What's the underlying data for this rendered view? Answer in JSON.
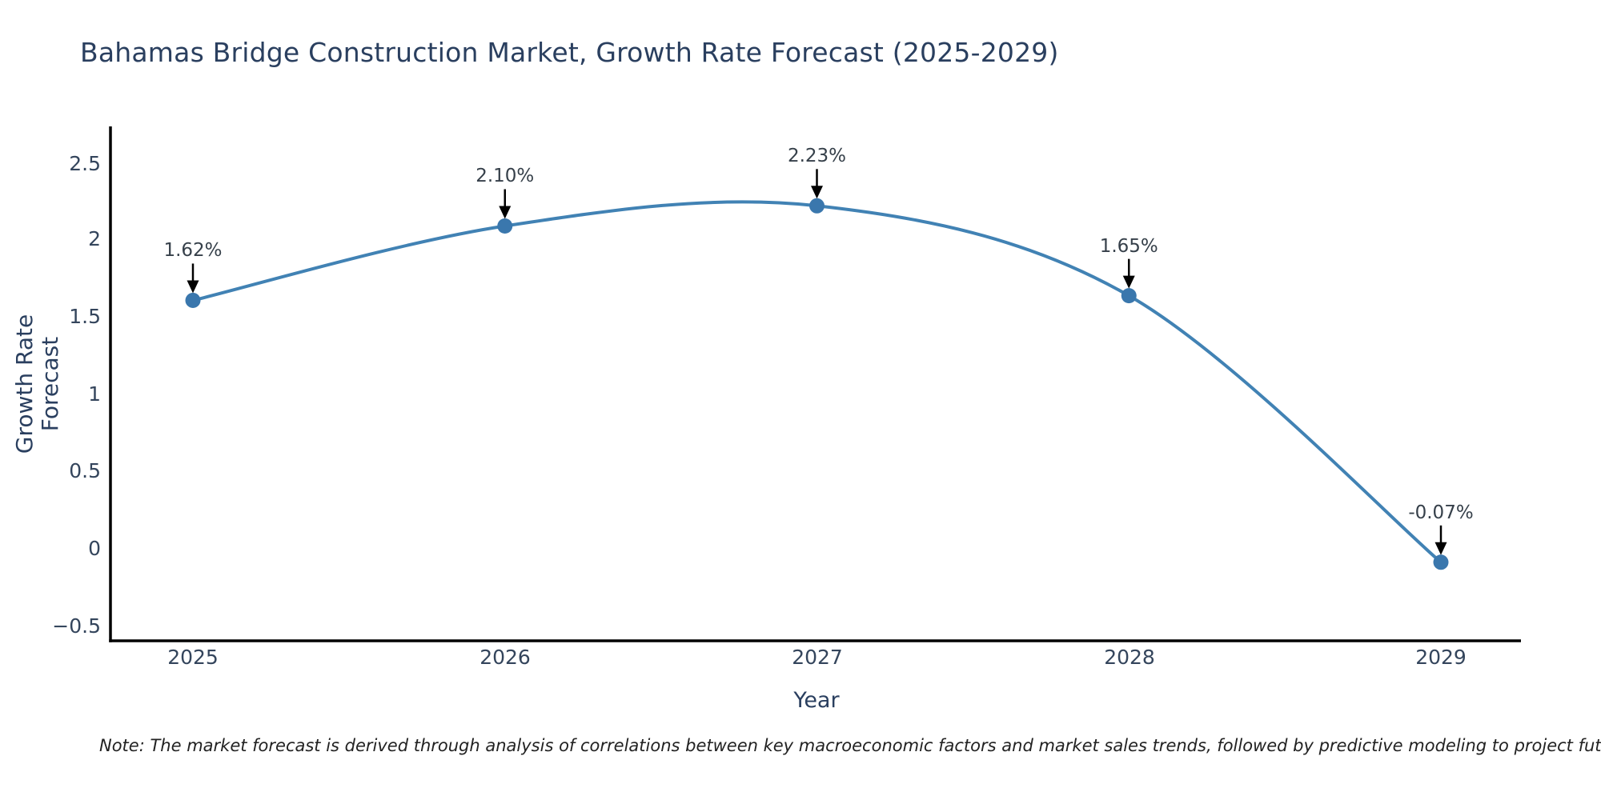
{
  "title": "Bahamas Bridge Construction Market, Growth Rate Forecast (2025-2029)",
  "note": "Note: The market forecast is derived through analysis of correlations between key macroeconomic factors and market sales trends, followed by predictive modeling to project future sa",
  "chart_data": {
    "type": "line",
    "title": "Bahamas Bridge Construction Market, Growth Rate Forecast (2025-2029)",
    "xlabel": "Year",
    "ylabel": "Growth Rate Forecast",
    "x": [
      2025,
      2026,
      2027,
      2028,
      2029
    ],
    "series": [
      {
        "name": "Growth Rate Forecast",
        "values": [
          1.62,
          2.1,
          2.23,
          1.65,
          -0.07
        ]
      }
    ],
    "line_shape": "spline",
    "grid": false,
    "legend": "none",
    "ylim": [
      -0.58,
      2.73
    ],
    "xticks": [
      "2025",
      "2026",
      "2027",
      "2028",
      "2029"
    ],
    "yticks": [
      "2.5",
      "2",
      "1.5",
      "1",
      "0.5",
      "0",
      "−0.5"
    ],
    "ytick_values": [
      2.5,
      2,
      1.5,
      1,
      0.5,
      0,
      -0.5
    ],
    "annotations": [
      {
        "x": 2025,
        "y": 1.62,
        "label": "1.62%"
      },
      {
        "x": 2026,
        "y": 2.1,
        "label": "2.10%"
      },
      {
        "x": 2027,
        "y": 2.23,
        "label": "2.23%"
      },
      {
        "x": 2028,
        "y": 1.65,
        "label": "1.65%"
      },
      {
        "x": 2029,
        "y": -0.07,
        "label": "-0.07%"
      }
    ],
    "colors": {
      "line": "#4182b4",
      "marker": "#3a77ad",
      "axis_line": "#000000",
      "title_text": "#2a3f5f",
      "tick_text": "#34455c",
      "annotation_text": "#36404a",
      "arrow": "#000000",
      "background": "#ffffff"
    }
  }
}
